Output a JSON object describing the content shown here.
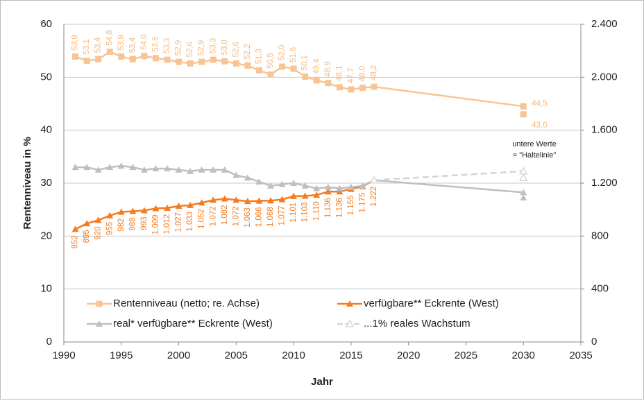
{
  "chart_data": {
    "type": "line",
    "ylabel": "Rentenniveau in %",
    "xlabel": "Jahr",
    "annotation": [
      "untere Werte",
      "= \"Haltelinie\""
    ],
    "xlim": [
      1990,
      2035
    ],
    "xticks": [
      1990,
      1995,
      2000,
      2005,
      2010,
      2015,
      2020,
      2025,
      2030,
      2035
    ],
    "ylim": [
      0,
      60
    ],
    "yticks": [
      0,
      10,
      20,
      30,
      40,
      50,
      60
    ],
    "y2lim": [
      0,
      2400
    ],
    "y2ticks": [
      0,
      400,
      800,
      {
        "value": 1200,
        "label": "1.200"
      },
      {
        "value": 1600,
        "label": "1.600"
      },
      {
        "value": 2000,
        "label": "2.000"
      },
      {
        "value": 2400,
        "label": "2.400"
      }
    ],
    "grid": true,
    "legend": "bottom",
    "series": [
      {
        "name": "Rentenniveau (netto; re. Achse)",
        "color": "#f9c493",
        "marker": "square",
        "dash": false,
        "x": [
          1991,
          1992,
          1993,
          1994,
          1995,
          1996,
          1997,
          1998,
          1999,
          2000,
          2001,
          2002,
          2003,
          2004,
          2005,
          2006,
          2007,
          2008,
          2009,
          2010,
          2011,
          2012,
          2013,
          2014,
          2015,
          2016,
          2017,
          2030,
          2030,
          2030
        ],
        "values": [
          53.9,
          53.1,
          53.4,
          54.8,
          53.9,
          53.4,
          54.0,
          53.6,
          53.3,
          52.9,
          52.6,
          52.9,
          53.3,
          53.0,
          52.6,
          52.2,
          51.3,
          50.5,
          52.0,
          51.6,
          50.1,
          49.4,
          48.9,
          48.1,
          47.7,
          48.0,
          48.2,
          44.5,
          null,
          43.0
        ],
        "value_labels": [
          "53,9",
          "53,1",
          "53,4",
          "54,8",
          "53,9",
          "53,4",
          "54,0",
          "53,6",
          "53,3",
          "52,9",
          "52,6",
          "52,9",
          "53,3",
          "53,0",
          "52,6",
          "52,2",
          "51,3",
          "50,5",
          "52,0",
          "51,6",
          "50,1",
          "49,4",
          "48,9",
          "48,1",
          "47,7",
          "48,0",
          "48,2",
          "44,5",
          null,
          "43,0"
        ]
      },
      {
        "name": "verfügbare** Eckrente (West)",
        "color": "#f47b20",
        "marker": "triangle",
        "dash": false,
        "axis": "y2",
        "x": [
          1991,
          1992,
          1993,
          1994,
          1995,
          1996,
          1997,
          1998,
          1999,
          2000,
          2001,
          2002,
          2003,
          2004,
          2005,
          2006,
          2007,
          2008,
          2009,
          2010,
          2011,
          2012,
          2013,
          2014,
          2015,
          2016,
          2017
        ],
        "values": [
          852,
          895,
          920,
          955,
          982,
          988,
          993,
          1009,
          1012,
          1027,
          1033,
          1052,
          1072,
          1082,
          1072,
          1063,
          1066,
          1068,
          1077,
          1101,
          1103,
          1110,
          1136,
          1136,
          1155,
          1175,
          1222
        ],
        "value_labels": [
          "852",
          "895",
          "920",
          "955",
          "982",
          "988",
          "993",
          "1.009",
          "1.012",
          "1.027",
          "1.033",
          "1.052",
          "1.072",
          "1.082",
          "1.072",
          "1.063",
          "1.066",
          "1.068",
          "1.077",
          "1.101",
          "1.103",
          "1.110",
          "1.136",
          "1.136",
          "1.155",
          "1.175",
          "1.222"
        ]
      },
      {
        "name": "real* verfügbare** Eckrente (West)",
        "color": "#bfbfbf",
        "marker": "triangle",
        "dash": false,
        "axis": "y2",
        "x": [
          1991,
          1992,
          1993,
          1994,
          1995,
          1996,
          1997,
          1998,
          1999,
          2000,
          2001,
          2002,
          2003,
          2004,
          2005,
          2006,
          2007,
          2008,
          2009,
          2010,
          2011,
          2012,
          2013,
          2014,
          2015,
          2016,
          2017,
          2030,
          2030,
          2030
        ],
        "values": [
          1320,
          1320,
          1300,
          1320,
          1330,
          1320,
          1300,
          1310,
          1310,
          1300,
          1290,
          1300,
          1300,
          1300,
          1260,
          1240,
          1210,
          1180,
          1190,
          1200,
          1180,
          1160,
          1170,
          1160,
          1170,
          1180,
          1222,
          1130,
          null,
          1090
        ]
      },
      {
        "name": "...1% reales Wachstum",
        "color": "#d4d4d4",
        "marker": "open-triangle",
        "dash": true,
        "axis": "y2",
        "x": [
          2017,
          2030,
          2030,
          2030
        ],
        "values": [
          1222,
          1290,
          null,
          1240
        ]
      }
    ]
  }
}
